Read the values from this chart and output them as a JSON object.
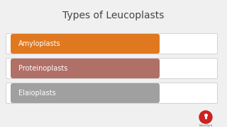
{
  "title": "Types of Leucoplasts",
  "title_fontsize": 10,
  "background_color": "#f0f0f0",
  "items": [
    {
      "label": "Amyloplasts",
      "color": "#e07820"
    },
    {
      "label": "Proteinoplasts",
      "color": "#b07068"
    },
    {
      "label": "Elaioplasts",
      "color": "#a0a0a0"
    }
  ],
  "text_color": "#ffffff",
  "label_fontsize": 7,
  "title_color": "#444444",
  "row_outline_color": "#cccccc",
  "row_bg": "#ffffff",
  "logo_color": "#cc2222"
}
